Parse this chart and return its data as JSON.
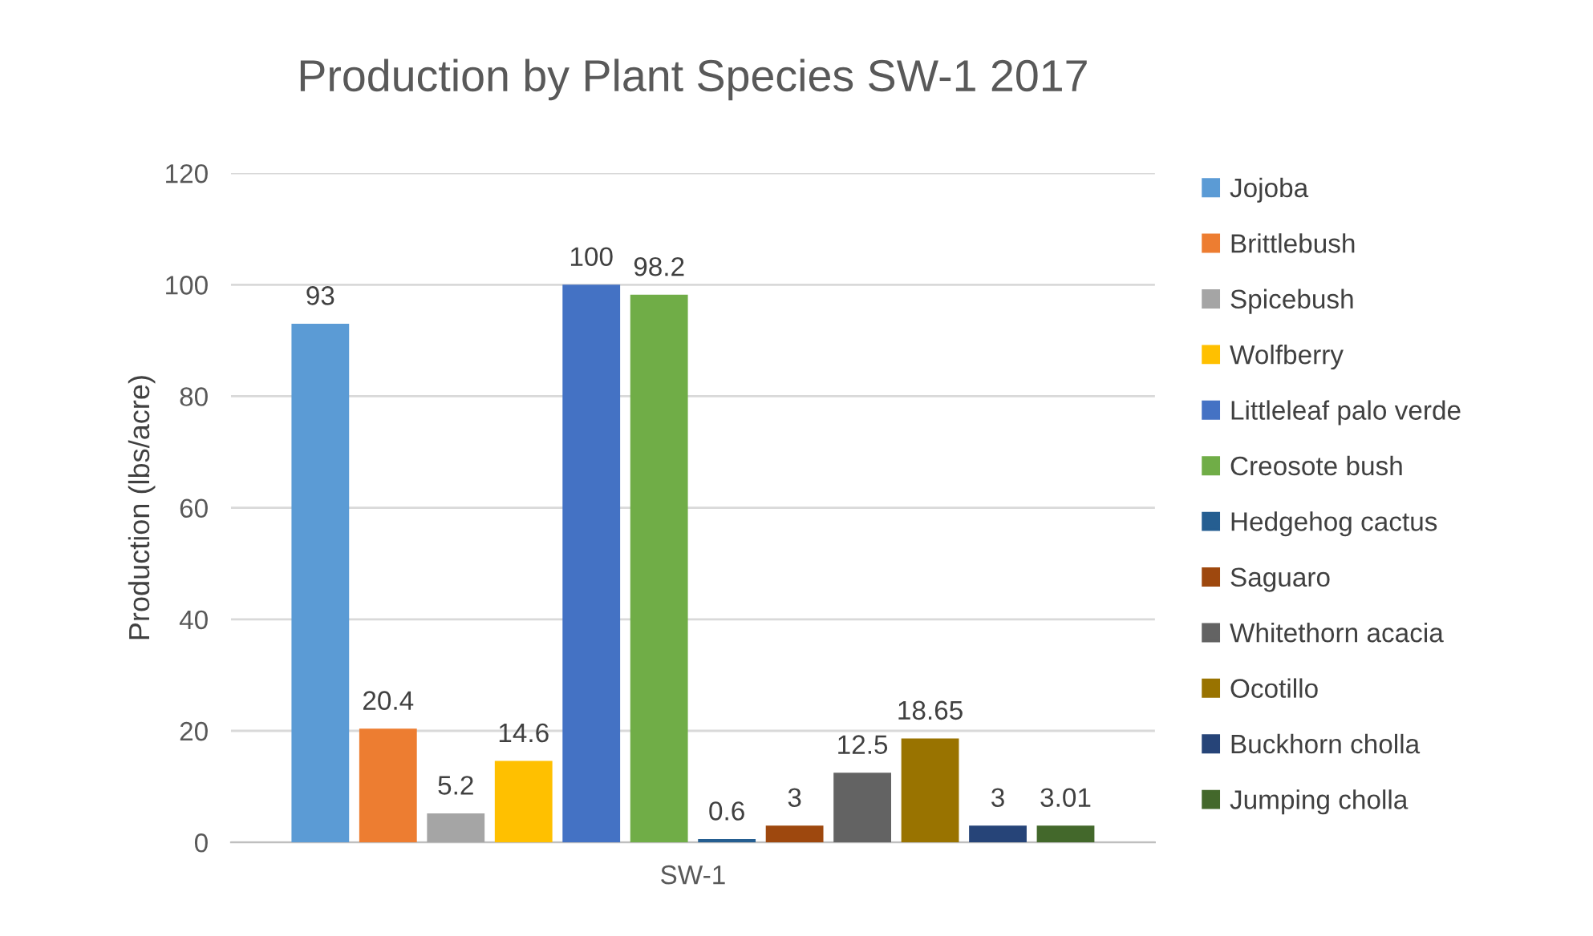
{
  "chart_data": {
    "type": "bar",
    "title": "Production by Plant Species SW-1 2017",
    "ylabel": "Production (lbs/acre)",
    "categories": [
      "SW-1"
    ],
    "series": [
      {
        "name": "Jojoba",
        "color": "#5b9bd5",
        "values": [
          93
        ]
      },
      {
        "name": "Brittlebush",
        "color": "#ed7d31",
        "values": [
          20.4
        ]
      },
      {
        "name": "Spicebush",
        "color": "#a5a5a5",
        "values": [
          5.2
        ]
      },
      {
        "name": "Wolfberry",
        "color": "#ffc000",
        "values": [
          14.6
        ]
      },
      {
        "name": "Littleleaf palo verde",
        "color": "#4472c4",
        "values": [
          100
        ]
      },
      {
        "name": "Creosote bush",
        "color": "#70ad47",
        "values": [
          98.2
        ]
      },
      {
        "name": "Hedgehog cactus",
        "color": "#255e91",
        "values": [
          0.6
        ]
      },
      {
        "name": "Saguaro",
        "color": "#9e480e",
        "values": [
          3
        ]
      },
      {
        "name": "Whitethorn acacia",
        "color": "#636363",
        "values": [
          12.5
        ]
      },
      {
        "name": "Ocotillo",
        "color": "#997300",
        "values": [
          18.65
        ]
      },
      {
        "name": "Buckhorn cholla",
        "color": "#264478",
        "values": [
          3
        ]
      },
      {
        "name": "Jumping cholla",
        "color": "#43682b",
        "values": [
          3.01
        ]
      }
    ],
    "ylim": [
      0,
      120
    ],
    "yticks": [
      0,
      20,
      40,
      60,
      80,
      100,
      120
    ],
    "grid": "y",
    "legend": "right",
    "data_labels": true
  }
}
